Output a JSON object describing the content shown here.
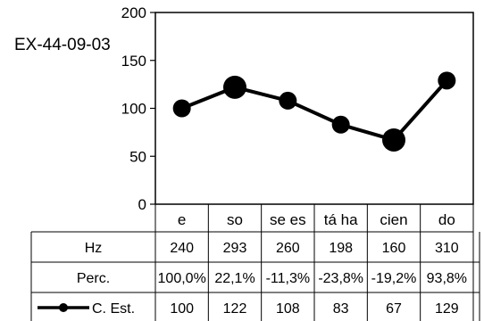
{
  "chart_data": {
    "type": "line",
    "id_label": "EX-44-09-03",
    "ylim": [
      0,
      200
    ],
    "yticks": [
      0,
      50,
      100,
      150,
      200
    ],
    "categories": [
      "e",
      "so",
      "se es",
      "tá ha",
      "cien",
      "do"
    ],
    "series": [
      {
        "name": "C. Est.",
        "values": [
          100,
          122,
          108,
          83,
          67,
          129
        ],
        "large_markers": [
          false,
          true,
          false,
          false,
          true,
          false
        ]
      }
    ],
    "table": [
      {
        "label": "Hz",
        "values": [
          "240",
          "293",
          "260",
          "198",
          "160",
          "310"
        ]
      },
      {
        "label": "Perc.",
        "values": [
          "100,0%",
          "22,1%",
          "-11,3%",
          "-23,8%",
          "-19,2%",
          "93,8%"
        ]
      },
      {
        "label": "C. Est.",
        "values": [
          "100",
          "122",
          "108",
          "83",
          "67",
          "129"
        ]
      }
    ],
    "grid": false,
    "legend": "table-row",
    "colors": {
      "line": "#000000",
      "frame": "#000000",
      "background": "#ffffff"
    }
  }
}
